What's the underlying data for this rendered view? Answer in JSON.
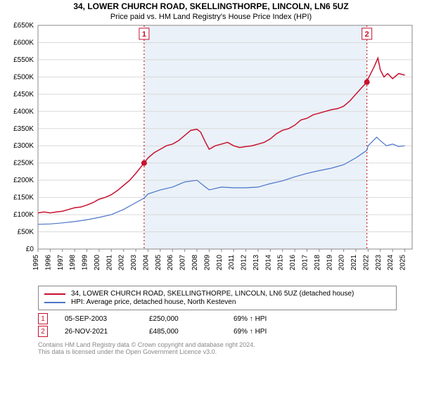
{
  "title_line1": "34, LOWER CHURCH ROAD, SKELLINGTHORPE, LINCOLN, LN6 5UZ",
  "title_line2": "Price paid vs. HM Land Registry's House Price Index (HPI)",
  "chart": {
    "type": "line",
    "background_color": "#ffffff",
    "plot_bg_color": "#ffffff",
    "shaded_color": "#eaf1f8",
    "grid_color": "#d9d9d9",
    "axis_color": "#888888",
    "vline_color": "#c00000",
    "x_start_year": 1995,
    "x_end_year": 2025.6,
    "x_ticks": [
      1995,
      1996,
      1997,
      1998,
      1999,
      2000,
      2001,
      2002,
      2003,
      2004,
      2005,
      2006,
      2007,
      2008,
      2009,
      2010,
      2011,
      2012,
      2013,
      2014,
      2015,
      2016,
      2017,
      2018,
      2019,
      2020,
      2021,
      2022,
      2023,
      2024,
      2025
    ],
    "y_min": 0,
    "y_max": 650000,
    "y_ticks": [
      0,
      50000,
      100000,
      150000,
      200000,
      250000,
      300000,
      350000,
      400000,
      450000,
      500000,
      550000,
      600000,
      650000
    ],
    "y_labels": [
      "£0",
      "£50K",
      "£100K",
      "£150K",
      "£200K",
      "£250K",
      "£300K",
      "£350K",
      "£400K",
      "£450K",
      "£500K",
      "£550K",
      "£600K",
      "£650K"
    ],
    "label_fontsize": 10,
    "title_fontsize": 12,
    "series_property": {
      "name": "34, LOWER CHURCH ROAD, SKELLINGTHORPE, LINCOLN, LN6 5UZ (detached house)",
      "color": "#c8102e",
      "line_width": 1.5,
      "data": [
        [
          1995,
          105000
        ],
        [
          1995.5,
          108000
        ],
        [
          1996,
          105000
        ],
        [
          1996.5,
          108000
        ],
        [
          1997,
          110000
        ],
        [
          1997.5,
          115000
        ],
        [
          1998,
          120000
        ],
        [
          1998.5,
          122000
        ],
        [
          1999,
          128000
        ],
        [
          1999.5,
          135000
        ],
        [
          2000,
          145000
        ],
        [
          2000.5,
          150000
        ],
        [
          2001,
          158000
        ],
        [
          2001.5,
          170000
        ],
        [
          2002,
          185000
        ],
        [
          2002.5,
          200000
        ],
        [
          2003,
          220000
        ],
        [
          2003.68,
          250000
        ],
        [
          2004,
          265000
        ],
        [
          2004.5,
          280000
        ],
        [
          2005,
          290000
        ],
        [
          2005.5,
          300000
        ],
        [
          2006,
          305000
        ],
        [
          2006.5,
          315000
        ],
        [
          2007,
          330000
        ],
        [
          2007.5,
          345000
        ],
        [
          2008,
          348000
        ],
        [
          2008.3,
          340000
        ],
        [
          2008.7,
          310000
        ],
        [
          2009,
          290000
        ],
        [
          2009.5,
          300000
        ],
        [
          2010,
          305000
        ],
        [
          2010.5,
          310000
        ],
        [
          2011,
          300000
        ],
        [
          2011.5,
          295000
        ],
        [
          2012,
          298000
        ],
        [
          2012.5,
          300000
        ],
        [
          2013,
          305000
        ],
        [
          2013.5,
          310000
        ],
        [
          2014,
          320000
        ],
        [
          2014.5,
          335000
        ],
        [
          2015,
          345000
        ],
        [
          2015.5,
          350000
        ],
        [
          2016,
          360000
        ],
        [
          2016.5,
          375000
        ],
        [
          2017,
          380000
        ],
        [
          2017.5,
          390000
        ],
        [
          2018,
          395000
        ],
        [
          2018.5,
          400000
        ],
        [
          2019,
          405000
        ],
        [
          2019.5,
          408000
        ],
        [
          2020,
          415000
        ],
        [
          2020.5,
          430000
        ],
        [
          2021,
          450000
        ],
        [
          2021.5,
          470000
        ],
        [
          2021.9,
          485000
        ],
        [
          2022,
          495000
        ],
        [
          2022.5,
          530000
        ],
        [
          2022.8,
          555000
        ],
        [
          2023,
          520000
        ],
        [
          2023.3,
          500000
        ],
        [
          2023.6,
          510000
        ],
        [
          2024,
          495000
        ],
        [
          2024.5,
          510000
        ],
        [
          2025,
          505000
        ]
      ]
    },
    "series_hpi": {
      "name": "HPI: Average price, detached house, North Kesteven",
      "color": "#4a74c9",
      "line_width": 1.2,
      "data": [
        [
          1995,
          72000
        ],
        [
          1996,
          73000
        ],
        [
          1997,
          76000
        ],
        [
          1998,
          80000
        ],
        [
          1999,
          85000
        ],
        [
          2000,
          92000
        ],
        [
          2001,
          100000
        ],
        [
          2002,
          115000
        ],
        [
          2003,
          135000
        ],
        [
          2003.68,
          148000
        ],
        [
          2004,
          160000
        ],
        [
          2005,
          172000
        ],
        [
          2006,
          180000
        ],
        [
          2007,
          195000
        ],
        [
          2008,
          200000
        ],
        [
          2008.7,
          180000
        ],
        [
          2009,
          172000
        ],
        [
          2010,
          180000
        ],
        [
          2011,
          178000
        ],
        [
          2012,
          178000
        ],
        [
          2013,
          180000
        ],
        [
          2014,
          190000
        ],
        [
          2015,
          198000
        ],
        [
          2016,
          210000
        ],
        [
          2017,
          220000
        ],
        [
          2018,
          228000
        ],
        [
          2019,
          235000
        ],
        [
          2020,
          245000
        ],
        [
          2021,
          265000
        ],
        [
          2021.9,
          287000
        ],
        [
          2022,
          300000
        ],
        [
          2022.7,
          325000
        ],
        [
          2023,
          315000
        ],
        [
          2023.5,
          300000
        ],
        [
          2024,
          305000
        ],
        [
          2024.5,
          298000
        ],
        [
          2025,
          300000
        ]
      ]
    },
    "markers": [
      {
        "num": "1",
        "x": 2003.68,
        "y": 250000,
        "date": "05-SEP-2003",
        "price": "£250,000",
        "delta": "69% ↑ HPI",
        "badge_color": "#c8102e"
      },
      {
        "num": "2",
        "x": 2021.9,
        "y": 485000,
        "date": "26-NOV-2021",
        "price": "£485,000",
        "delta": "69% ↑ HPI",
        "badge_color": "#c8102e"
      }
    ]
  },
  "footer_line1": "Contains HM Land Registry data © Crown copyright and database right 2024.",
  "footer_line2": "This data is licensed under the Open Government Licence v3.0."
}
